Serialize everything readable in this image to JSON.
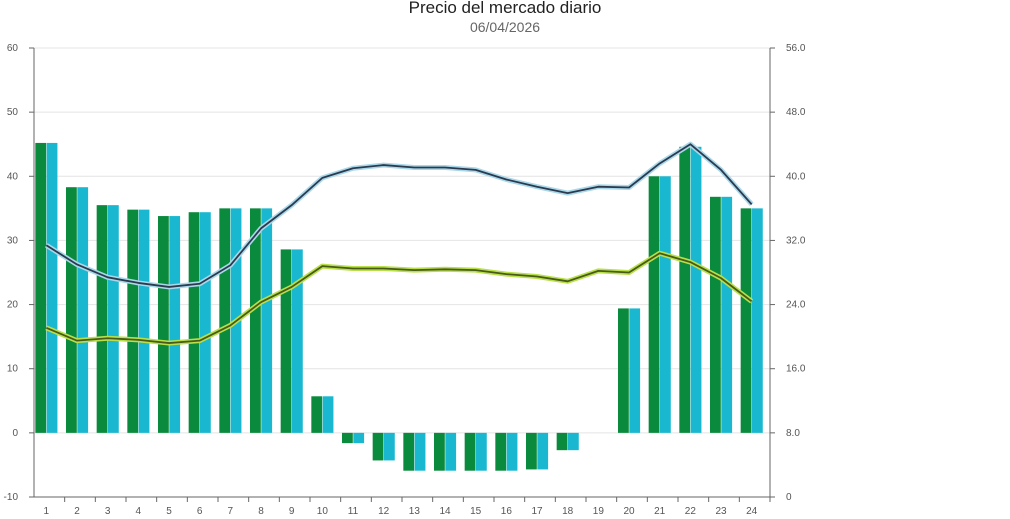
{
  "chart_data": {
    "type": "bar",
    "title": "Precio del mercado diario",
    "subtitle": "06/04/2026",
    "categories": [
      "1",
      "2",
      "3",
      "4",
      "5",
      "6",
      "7",
      "8",
      "9",
      "10",
      "11",
      "12",
      "13",
      "14",
      "15",
      "16",
      "17",
      "18",
      "19",
      "20",
      "21",
      "22",
      "23",
      "24"
    ],
    "y_left": {
      "ylim": [
        -10,
        60
      ],
      "ticks": [
        "60",
        "50",
        "40",
        "30",
        "20",
        "10",
        "0",
        "-10"
      ],
      "tick_values": [
        60,
        50,
        40,
        30,
        20,
        10,
        0,
        -10
      ]
    },
    "y_right": {
      "ylim": [
        0,
        56
      ],
      "ticks": [
        "56.0",
        "48.0",
        "40.0",
        "32.0",
        "24.0",
        "16.0",
        "8.0",
        "0"
      ],
      "tick_values": [
        56,
        48,
        40,
        32,
        24,
        16,
        8,
        0
      ]
    },
    "grid": true,
    "series": [
      {
        "kind": "bar",
        "axis": "left",
        "color": "#0a8a3c",
        "values": [
          45.2,
          38.3,
          35.5,
          34.8,
          33.8,
          34.4,
          35.0,
          35.0,
          28.6,
          5.7,
          -1.6,
          -4.3,
          -5.9,
          -5.9,
          -5.9,
          -5.9,
          -5.7,
          -2.7,
          0,
          19.4,
          40.0,
          44.6,
          36.8,
          35.0
        ]
      },
      {
        "kind": "bar",
        "axis": "left",
        "color": "#1ab8d0",
        "values": [
          45.2,
          38.3,
          35.5,
          34.8,
          33.8,
          34.4,
          35.0,
          35.0,
          28.6,
          5.7,
          -1.6,
          -4.3,
          -5.9,
          -5.9,
          -5.9,
          -5.9,
          -5.7,
          -2.7,
          0,
          19.4,
          40.0,
          44.6,
          36.8,
          35.0
        ]
      },
      {
        "kind": "line",
        "axis": "right",
        "color": "#2d3a4e",
        "halo": "#a9d8ea",
        "values": [
          31.4,
          29.0,
          27.4,
          26.7,
          26.2,
          26.6,
          28.9,
          33.5,
          36.4,
          39.8,
          41.0,
          41.4,
          41.1,
          41.1,
          40.8,
          39.6,
          38.7,
          37.9,
          38.7,
          38.6,
          41.6,
          44.0,
          40.8,
          36.5
        ]
      },
      {
        "kind": "line",
        "axis": "right",
        "color": "#4a5a1a",
        "halo": "#b8e04a",
        "values": [
          21.1,
          19.5,
          19.8,
          19.6,
          19.2,
          19.5,
          21.4,
          24.3,
          26.2,
          28.8,
          28.5,
          28.5,
          28.3,
          28.4,
          28.3,
          27.8,
          27.5,
          26.9,
          28.2,
          28.0,
          30.4,
          29.3,
          27.3,
          24.4
        ]
      }
    ]
  }
}
